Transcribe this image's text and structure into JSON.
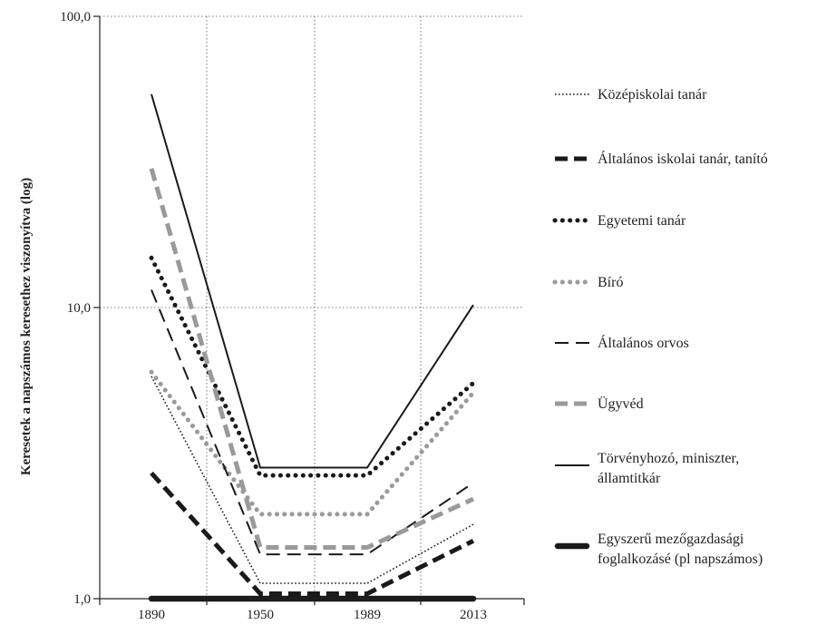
{
  "chart_data": {
    "type": "line",
    "title": "",
    "xlabel": "",
    "ylabel": "Keresetek a napszámos keresethez viszonyítva (log)",
    "y_scale": "log",
    "ylim": [
      1,
      100
    ],
    "y_ticks": [
      {
        "value": 1,
        "label": "1,0"
      },
      {
        "value": 10,
        "label": "10,0"
      },
      {
        "value": 100,
        "label": "100,0"
      }
    ],
    "x_ticks": [
      {
        "value": 1890,
        "label": "1890"
      },
      {
        "value": 1950,
        "label": "1950"
      },
      {
        "value": 1989,
        "label": "1989"
      },
      {
        "value": 2013,
        "label": "2013"
      }
    ],
    "grid": true,
    "legend_position": "right",
    "series": [
      {
        "name": "Középiskolai tanár",
        "style": "dotted-thin",
        "color": "#1a1a1a",
        "points": [
          [
            1890,
            5.8
          ],
          [
            1950,
            1.13
          ],
          [
            1989,
            1.13
          ],
          [
            2013,
            1.8
          ]
        ]
      },
      {
        "name": "Általános iskolai tanár, tanító",
        "style": "dashed-heavy",
        "color": "#1a1a1a",
        "points": [
          [
            1890,
            2.7
          ],
          [
            1950,
            1.04
          ],
          [
            1989,
            1.04
          ],
          [
            2013,
            1.58
          ]
        ]
      },
      {
        "name": "Egyetemi tanár",
        "style": "dotted-heavy",
        "color": "#1a1a1a",
        "points": [
          [
            1890,
            14.8
          ],
          [
            1950,
            2.65
          ],
          [
            1989,
            2.65
          ],
          [
            2013,
            5.5
          ]
        ]
      },
      {
        "name": "Bíró",
        "style": "dotted-heavy",
        "color": "#9a9a9a",
        "points": [
          [
            1890,
            6.0
          ],
          [
            1950,
            1.95
          ],
          [
            1989,
            1.95
          ],
          [
            2013,
            5.1
          ]
        ]
      },
      {
        "name": "Általános orvos",
        "style": "dashed-medium",
        "color": "#1a1a1a",
        "points": [
          [
            1890,
            11.5
          ],
          [
            1950,
            1.42
          ],
          [
            1989,
            1.42
          ],
          [
            2013,
            2.5
          ]
        ]
      },
      {
        "name": "Ügyvéd",
        "style": "dashed-heavy",
        "color": "#9a9a9a",
        "points": [
          [
            1890,
            30.0
          ],
          [
            1950,
            1.5
          ],
          [
            1989,
            1.5
          ],
          [
            2013,
            2.2
          ]
        ]
      },
      {
        "name": [
          "Törvényhozó, miniszter,",
          "államtitkár"
        ],
        "style": "solid",
        "color": "#1a1a1a",
        "points": [
          [
            1890,
            54.0
          ],
          [
            1950,
            2.82
          ],
          [
            1989,
            2.82
          ],
          [
            2013,
            10.2
          ]
        ]
      },
      {
        "name": [
          "Egyszerű mezőgazdasági",
          "foglalkozásé (pl napszámos)"
        ],
        "style": "solid-heavy",
        "color": "#1a1a1a",
        "points": [
          [
            1890,
            1.0
          ],
          [
            1950,
            1.0
          ],
          [
            1989,
            1.0
          ],
          [
            2013,
            1.0
          ]
        ]
      }
    ]
  }
}
